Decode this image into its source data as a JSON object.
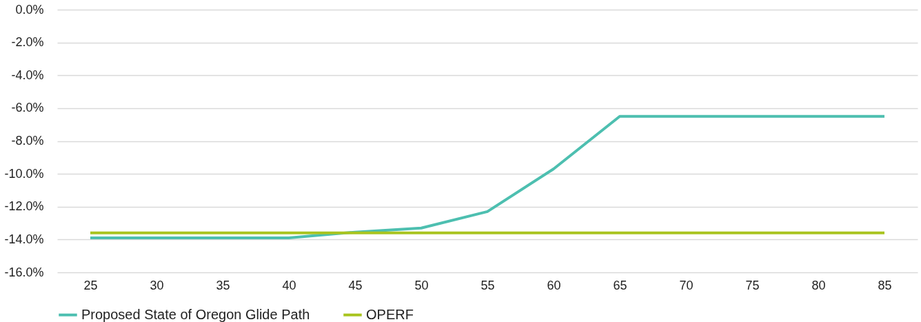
{
  "chart_data": {
    "type": "line",
    "categories": [
      "25",
      "30",
      "35",
      "40",
      "45",
      "50",
      "55",
      "60",
      "65",
      "70",
      "75",
      "80",
      "85"
    ],
    "series": [
      {
        "name": "Proposed State of Oregon Glide Path",
        "color": "#4dbfb0",
        "values": [
          -13.9,
          -13.9,
          -13.9,
          -13.9,
          -13.55,
          -13.3,
          -12.3,
          -9.7,
          -6.5,
          -6.5,
          -6.5,
          -6.5,
          -6.5
        ]
      },
      {
        "name": "OPERF",
        "color": "#a9c41f",
        "values": [
          -13.6,
          -13.6,
          -13.6,
          -13.6,
          -13.6,
          -13.6,
          -13.6,
          -13.6,
          -13.6,
          -13.6,
          -13.6,
          -13.6,
          -13.6
        ]
      }
    ],
    "ylim": [
      -16,
      0
    ],
    "yticks": [
      {
        "value": -16,
        "label": "-16.0%"
      },
      {
        "value": -14,
        "label": "-14.0%"
      },
      {
        "value": -12,
        "label": "-12.0%"
      },
      {
        "value": -10,
        "label": "-10.0%"
      },
      {
        "value": -8,
        "label": "-8.0%"
      },
      {
        "value": -6,
        "label": "-6.0%"
      },
      {
        "value": -4,
        "label": "-4.0%"
      },
      {
        "value": -2,
        "label": "-2.0%"
      },
      {
        "value": 0,
        "label": "0.0%"
      }
    ],
    "grid": "y",
    "legend": "bottom",
    "marker": "none",
    "line_style": "solid"
  }
}
